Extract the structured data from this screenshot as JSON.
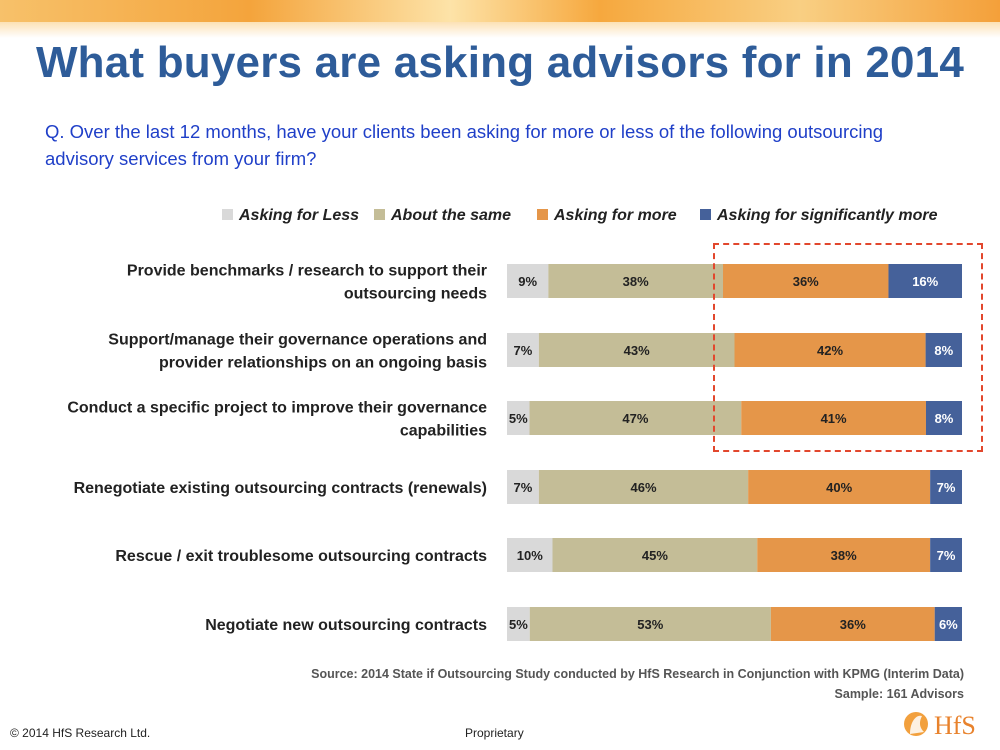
{
  "title": "What buyers are asking advisors for in 2014",
  "question": "Q. Over the last 12 months, have your clients been asking for more or less of the following outsourcing advisory services from your firm?",
  "colors": {
    "asking_for_less": "#d9d9d9",
    "about_the_same": "#c4bd97",
    "asking_for_more": "#e59649",
    "asking_for_significantly_more": "#45619a",
    "title": "#2e5c99",
    "question": "#1f3fc8",
    "highlight": "#e2472d"
  },
  "chart_data": {
    "type": "bar",
    "orientation": "horizontal",
    "stacked": true,
    "normalized": true,
    "legend_position": "top",
    "categories": [
      "Provide benchmarks / research to support their outsourcing needs",
      "Support/manage their governance operations and provider relationships on an ongoing basis",
      "Conduct a specific project to improve their governance capabilities",
      "Renegotiate existing outsourcing contracts (renewals)",
      "Rescue / exit troublesome outsourcing contracts",
      "Negotiate new outsourcing contracts"
    ],
    "category_lines": [
      [
        "Provide benchmarks / research to support their",
        "outsourcing needs"
      ],
      [
        "Support/manage their governance operations and",
        "provider relationships on an ongoing basis"
      ],
      [
        "Conduct a specific project to improve their governance",
        "capabilities"
      ],
      [
        "Renegotiate existing outsourcing contracts (renewals)"
      ],
      [
        "Rescue / exit troublesome outsourcing contracts"
      ],
      [
        "Negotiate new outsourcing contracts"
      ]
    ],
    "series": [
      {
        "name": "Asking for Less",
        "color": "#d9d9d9",
        "values": [
          9,
          7,
          5,
          7,
          10,
          5
        ]
      },
      {
        "name": "About the same",
        "color": "#c4bd97",
        "values": [
          38,
          43,
          47,
          46,
          45,
          53
        ]
      },
      {
        "name": "Asking for more",
        "color": "#e59649",
        "values": [
          36,
          42,
          41,
          40,
          38,
          36
        ]
      },
      {
        "name": "Asking for significantly more",
        "color": "#45619a",
        "values": [
          16,
          8,
          8,
          7,
          7,
          6
        ]
      }
    ],
    "unit": "%"
  },
  "source": "Source: 2014 State if Outsourcing Study conducted by HfS Research in Conjunction with KPMG (Interim Data)",
  "sample": "Sample: 161 Advisors",
  "footer": {
    "copyright": "© 2014 HfS Research Ltd.",
    "proprietary": "Proprietary",
    "logo_text": "HfS"
  }
}
